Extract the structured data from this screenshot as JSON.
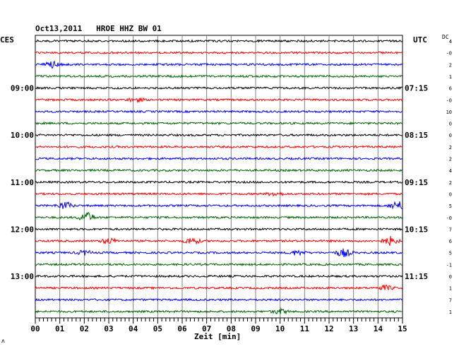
{
  "header": {
    "title": "Oct13,2011   HROE HHZ BW 01",
    "left_zone": "CES",
    "right_zone": "UTC",
    "right_corner": "DC"
  },
  "chart_data": {
    "type": "line",
    "title": "Oct13,2011   HROE HHZ BW 01",
    "xlabel": "Zeit [min]",
    "x_ticks": [
      "00",
      "01",
      "02",
      "03",
      "04",
      "05",
      "06",
      "07",
      "08",
      "09",
      "10",
      "11",
      "12",
      "13",
      "14",
      "15"
    ],
    "xlim": [
      0,
      15
    ],
    "grid": true,
    "trace_colors": [
      "#000000",
      "#ff0000",
      "#0000ff",
      "#006400"
    ],
    "traces": 24,
    "left_time_labels": [
      {
        "trace": 4,
        "text": "09:00"
      },
      {
        "trace": 8,
        "text": "10:00"
      },
      {
        "trace": 12,
        "text": "11:00"
      },
      {
        "trace": 16,
        "text": "12:00"
      },
      {
        "trace": 20,
        "text": "13:00"
      }
    ],
    "right_time_labels": [
      {
        "trace": 4,
        "text": "07:15"
      },
      {
        "trace": 8,
        "text": "08:15"
      },
      {
        "trace": 12,
        "text": "09:15"
      },
      {
        "trace": 16,
        "text": "10:15"
      },
      {
        "trace": 20,
        "text": "11:15"
      }
    ],
    "dc_offsets": [
      "4",
      "-0",
      "2",
      "1",
      "6",
      "-0",
      "10",
      "0",
      "0",
      "2",
      "2",
      "4",
      "2",
      "0",
      "5",
      "-0",
      "7",
      "6",
      "5",
      "-1",
      "0",
      "1",
      "7",
      "1"
    ],
    "events": [
      {
        "trace": 2,
        "minute": 0.7,
        "amp": 1.8
      },
      {
        "trace": 5,
        "minute": 4.1,
        "amp": 1.4
      },
      {
        "trace": 13,
        "minute": 9.8,
        "amp": 1.3
      },
      {
        "trace": 14,
        "minute": 1.2,
        "amp": 2.4
      },
      {
        "trace": 14,
        "minute": 14.8,
        "amp": 3.0
      },
      {
        "trace": 15,
        "minute": 2.1,
        "amp": 3.2
      },
      {
        "trace": 17,
        "minute": 3.0,
        "amp": 1.8
      },
      {
        "trace": 17,
        "minute": 6.4,
        "amp": 2.2
      },
      {
        "trace": 17,
        "minute": 14.5,
        "amp": 2.6
      },
      {
        "trace": 18,
        "minute": 2.0,
        "amp": 1.4
      },
      {
        "trace": 18,
        "minute": 10.7,
        "amp": 1.5
      },
      {
        "trace": 18,
        "minute": 12.6,
        "amp": 2.5
      },
      {
        "trace": 21,
        "minute": 14.3,
        "amp": 1.6
      },
      {
        "trace": 23,
        "minute": 10.0,
        "amp": 1.5
      }
    ]
  },
  "footer": {
    "mark": "ʌ"
  }
}
